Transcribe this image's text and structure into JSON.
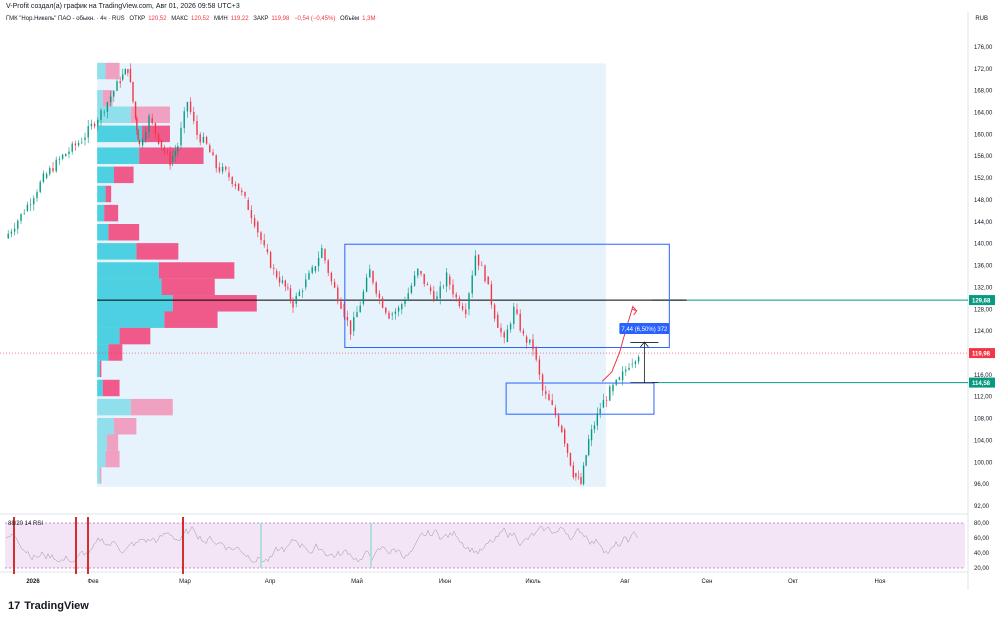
{
  "header": {
    "caption": "V-Profit создал(а) график на TradingView.com, Авг 01, 2026 09:58 UTC+3",
    "currency": "RUB"
  },
  "legend": {
    "symbol": "ГМК \"Нор.Никель\" ПАО - обыкн. · 4ч · RUS",
    "open_label": "ОТКР",
    "open_value": "120,52",
    "high_label": "МАКС",
    "high_value": "120,52",
    "low_label": "МИН",
    "low_value": "119,22",
    "close_label": "ЗАКР",
    "close_value": "119,98",
    "change_value": "−0,54 (−0,45%)",
    "volume_label": "Объём",
    "volume_value": "1,3М"
  },
  "footer": {
    "brand": "TradingView",
    "logo_mark": "17"
  },
  "rsi_panel": {
    "label": "88/20 14 RSI",
    "levels": [
      80,
      60,
      40,
      20
    ],
    "level_labels": [
      "80,00",
      "60,00",
      "40,00",
      "20,00"
    ]
  },
  "chart_data": {
    "type": "candlestick",
    "ylim": [
      92,
      178
    ],
    "price_ticks": [
      176,
      172,
      168,
      164,
      160,
      156,
      152,
      148,
      144,
      140,
      136,
      132,
      128,
      124,
      120,
      116,
      112,
      108,
      104,
      100,
      96,
      92
    ],
    "price_tick_labels": [
      "176,00",
      "172,00",
      "168,00",
      "164,00",
      "160,00",
      "156,00",
      "152,00",
      "148,00",
      "144,00",
      "140,00",
      "136,00",
      "132,00",
      "128,00",
      "124,00",
      "120,00",
      "116,00",
      "112,00",
      "108,00",
      "104,00",
      "100,00",
      "96,00",
      "92,00"
    ],
    "x_labels": [
      "2026",
      "Фев",
      "Мар",
      "Апр",
      "Май",
      "Июн",
      "Июль",
      "Авг",
      "Сен",
      "Окт",
      "Ноя"
    ],
    "price_path": [
      [
        0,
        141
      ],
      [
        1,
        146
      ],
      [
        2,
        152
      ],
      [
        3,
        156
      ],
      [
        4,
        159
      ],
      [
        5,
        164
      ],
      [
        6,
        170
      ],
      [
        6.4,
        172
      ],
      [
        6.8,
        163
      ],
      [
        7,
        158
      ],
      [
        7.5,
        163
      ],
      [
        8,
        159
      ],
      [
        8.6,
        155
      ],
      [
        9,
        158
      ],
      [
        9.5,
        166
      ],
      [
        10,
        160
      ],
      [
        10.5,
        158
      ],
      [
        11,
        154
      ],
      [
        11.5,
        153
      ],
      [
        12,
        151
      ],
      [
        12.5,
        148
      ],
      [
        13,
        144
      ],
      [
        13.5,
        139
      ],
      [
        14,
        135
      ],
      [
        14.6,
        132
      ],
      [
        15,
        129
      ],
      [
        15.5,
        132
      ],
      [
        16,
        135
      ],
      [
        16.5,
        139
      ],
      [
        17,
        133
      ],
      [
        17.5,
        129
      ],
      [
        18,
        124
      ],
      [
        18.5,
        129
      ],
      [
        19,
        135
      ],
      [
        19.5,
        130
      ],
      [
        20,
        127
      ],
      [
        20.5,
        128
      ],
      [
        21,
        131
      ],
      [
        21.5,
        135
      ],
      [
        22,
        132
      ],
      [
        22.5,
        130
      ],
      [
        23,
        134
      ],
      [
        23.5,
        130
      ],
      [
        24,
        128
      ],
      [
        24.5,
        138
      ],
      [
        25,
        134
      ],
      [
        25.5,
        127
      ],
      [
        26,
        122
      ],
      [
        26.5,
        128
      ],
      [
        27,
        123
      ],
      [
        27.5,
        121
      ],
      [
        28,
        113
      ],
      [
        28.5,
        110
      ],
      [
        29,
        106
      ],
      [
        29.6,
        98
      ],
      [
        30,
        96
      ],
      [
        30.4,
        104
      ],
      [
        31,
        110
      ],
      [
        31.5,
        113
      ],
      [
        32,
        115
      ],
      [
        32.5,
        118
      ],
      [
        33,
        119.98
      ]
    ],
    "x_total": 50,
    "last_price": "119,98",
    "levels": [
      {
        "value": 129.68,
        "label": "129,68",
        "color": "#089981"
      },
      {
        "value": 114.58,
        "label": "114,58",
        "color": "#089981"
      },
      {
        "value": 129.68,
        "label": "",
        "color": "#000000"
      }
    ],
    "last_price_value": 119.98,
    "last_price_color": "#f23645",
    "zones": [
      {
        "x0": 17.7,
        "x1": 34.6,
        "y_top": 139.9,
        "y_bottom": 121.0,
        "color": "#2962ff"
      },
      {
        "x0": 26.1,
        "x1": 33.8,
        "y_top": 114.5,
        "y_bottom": 108.8,
        "color": "#2962ff"
      }
    ],
    "measure": {
      "label": "7,44 (6,50%) 372",
      "from": 114.58,
      "to": 122.0,
      "x": 33.3
    },
    "projection": [
      [
        31.1,
        114.8
      ],
      [
        31.6,
        116.5
      ],
      [
        32.0,
        120.0
      ],
      [
        32.4,
        125.0
      ],
      [
        32.7,
        128.5
      ],
      [
        32.9,
        127.7
      ]
    ],
    "volume_profile": {
      "x_left": 4.8,
      "rows": [
        {
          "p": 171.5,
          "buy": 0.3,
          "sell": 0.5
        },
        {
          "p": 166.5,
          "buy": 0.2,
          "sell": 0.35
        },
        {
          "p": 163.5,
          "buy": 1.2,
          "sell": 1.4
        },
        {
          "p": 160.0,
          "buy": 1.6,
          "sell": 1.0
        },
        {
          "p": 156.0,
          "buy": 1.5,
          "sell": 2.3
        },
        {
          "p": 152.5,
          "buy": 0.6,
          "sell": 0.7
        },
        {
          "p": 149.0,
          "buy": 0.3,
          "sell": 0.2
        },
        {
          "p": 145.5,
          "buy": 0.25,
          "sell": 0.5
        },
        {
          "p": 142.0,
          "buy": 0.4,
          "sell": 1.1
        },
        {
          "p": 138.5,
          "buy": 1.4,
          "sell": 1.5
        },
        {
          "p": 135.0,
          "buy": 2.2,
          "sell": 2.7
        },
        {
          "p": 132.0,
          "buy": 2.3,
          "sell": 1.9
        },
        {
          "p": 129.0,
          "buy": 2.7,
          "sell": 3.0
        },
        {
          "p": 126.0,
          "buy": 2.4,
          "sell": 1.9
        },
        {
          "p": 123.0,
          "buy": 0.8,
          "sell": 1.1
        },
        {
          "p": 120.0,
          "buy": 0.4,
          "sell": 0.5
        },
        {
          "p": 117.0,
          "buy": 0.1,
          "sell": 0.05
        },
        {
          "p": 113.5,
          "buy": 0.2,
          "sell": 0.6
        },
        {
          "p": 110.0,
          "buy": 1.2,
          "sell": 1.5
        },
        {
          "p": 106.5,
          "buy": 0.6,
          "sell": 0.8
        },
        {
          "p": 103.5,
          "buy": 0.35,
          "sell": 0.4
        },
        {
          "p": 100.5,
          "buy": 0.3,
          "sell": 0.5
        },
        {
          "p": 97.5,
          "buy": 0.1,
          "sell": 0.05
        }
      ]
    }
  },
  "colors": {
    "profile_buy": "#4dd0e1",
    "profile_buy_light": "#8fe0ec",
    "profile_sell": "#ef5a8a",
    "profile_sell_light": "#f0a0c0",
    "candles_up": "#089981",
    "candles_down": "#f23645",
    "profile_bg": "#e3f2fd",
    "rsi_bg": "#f3e5f5"
  }
}
